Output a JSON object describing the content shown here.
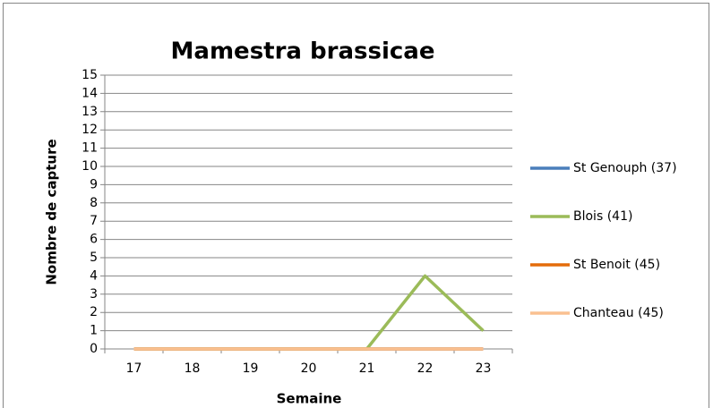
{
  "chart_data": {
    "type": "line",
    "title": "Mamestra brassicae",
    "x_label": "Semaine",
    "y_label": "Nombre de capture",
    "categories": [
      "17",
      "18",
      "19",
      "20",
      "21",
      "22",
      "23"
    ],
    "series": [
      {
        "name": "St Genouph (37)",
        "color": "#4a7ebb",
        "values": [
          0,
          0,
          0,
          0,
          0,
          0,
          0
        ]
      },
      {
        "name": "Blois (41)",
        "color": "#9bbb59",
        "values": [
          0,
          0,
          0,
          0,
          0,
          4,
          1
        ]
      },
      {
        "name": "St Benoit (45)",
        "color": "#e46c0a",
        "values": [
          0,
          0,
          0,
          0,
          0,
          0,
          0
        ]
      },
      {
        "name": "Chanteau (45)",
        "color": "#fac090",
        "values": [
          0,
          0,
          0,
          0,
          0,
          0,
          0
        ]
      }
    ],
    "ylim": [
      0,
      15
    ],
    "yticks": [
      0,
      1,
      2,
      3,
      4,
      5,
      6,
      7,
      8,
      9,
      10,
      11,
      12,
      13,
      14,
      15
    ],
    "grid": true,
    "legend": "right"
  }
}
